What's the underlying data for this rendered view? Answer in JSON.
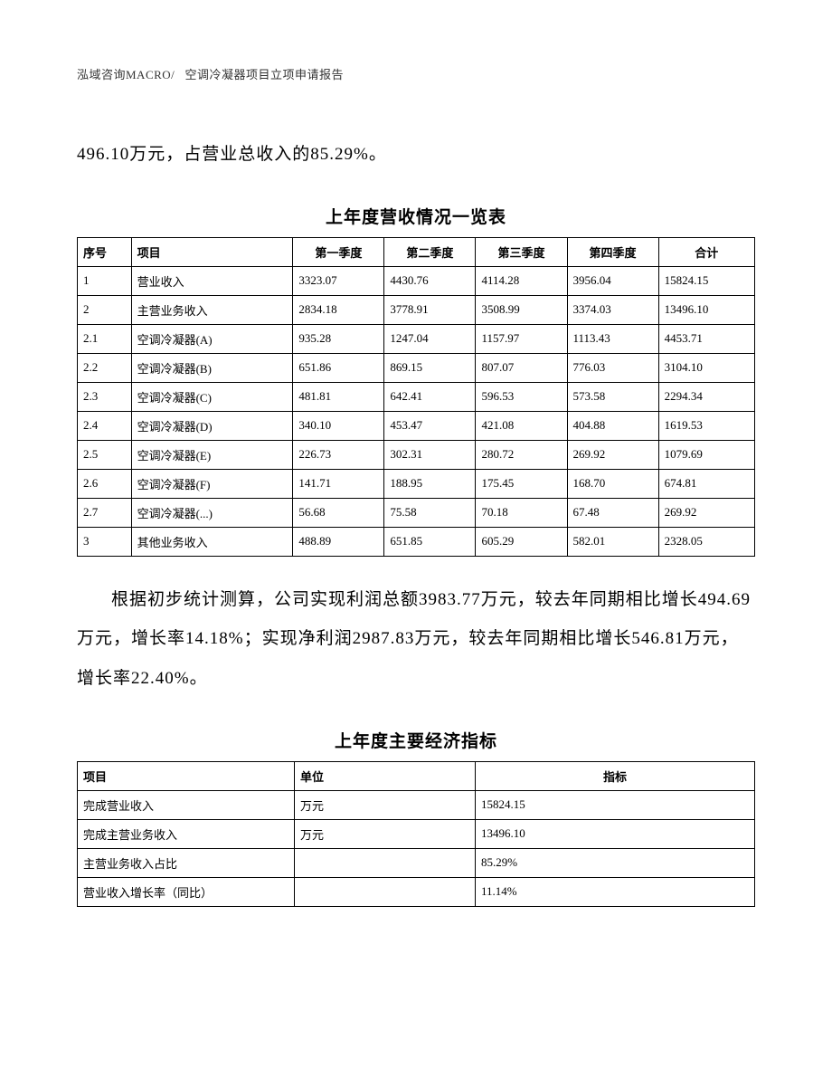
{
  "header": {
    "company": "泓域咨询MACRO/",
    "doc_title": "空调冷凝器项目立项申请报告"
  },
  "para1": "496.10万元，占营业总收入的85.29%。",
  "table1": {
    "title": "上年度营收情况一览表",
    "columns": [
      "序号",
      "项目",
      "第一季度",
      "第二季度",
      "第三季度",
      "第四季度",
      "合计"
    ],
    "rows": [
      [
        "1",
        "营业收入",
        "3323.07",
        "4430.76",
        "4114.28",
        "3956.04",
        "15824.15"
      ],
      [
        "2",
        "主营业务收入",
        "2834.18",
        "3778.91",
        "3508.99",
        "3374.03",
        "13496.10"
      ],
      [
        "2.1",
        "空调冷凝器(A)",
        "935.28",
        "1247.04",
        "1157.97",
        "1113.43",
        "4453.71"
      ],
      [
        "2.2",
        "空调冷凝器(B)",
        "651.86",
        "869.15",
        "807.07",
        "776.03",
        "3104.10"
      ],
      [
        "2.3",
        "空调冷凝器(C)",
        "481.81",
        "642.41",
        "596.53",
        "573.58",
        "2294.34"
      ],
      [
        "2.4",
        "空调冷凝器(D)",
        "340.10",
        "453.47",
        "421.08",
        "404.88",
        "1619.53"
      ],
      [
        "2.5",
        "空调冷凝器(E)",
        "226.73",
        "302.31",
        "280.72",
        "269.92",
        "1079.69"
      ],
      [
        "2.6",
        "空调冷凝器(F)",
        "141.71",
        "188.95",
        "175.45",
        "168.70",
        "674.81"
      ],
      [
        "2.7",
        "空调冷凝器(...)",
        "56.68",
        "75.58",
        "70.18",
        "67.48",
        "269.92"
      ],
      [
        "3",
        "其他业务收入",
        "488.89",
        "651.85",
        "605.29",
        "582.01",
        "2328.05"
      ]
    ]
  },
  "para2": "根据初步统计测算，公司实现利润总额3983.77万元，较去年同期相比增长494.69万元，增长率14.18%；实现净利润2987.83万元，较去年同期相比增长546.81万元，增长率22.40%。",
  "table2": {
    "title": "上年度主要经济指标",
    "columns": [
      "项目",
      "单位",
      "指标"
    ],
    "rows": [
      [
        "完成营业收入",
        "万元",
        "15824.15"
      ],
      [
        "完成主营业务收入",
        "万元",
        "13496.10"
      ],
      [
        "主营业务收入占比",
        "",
        "85.29%"
      ],
      [
        "营业收入增长率（同比）",
        "",
        "11.14%"
      ]
    ]
  }
}
